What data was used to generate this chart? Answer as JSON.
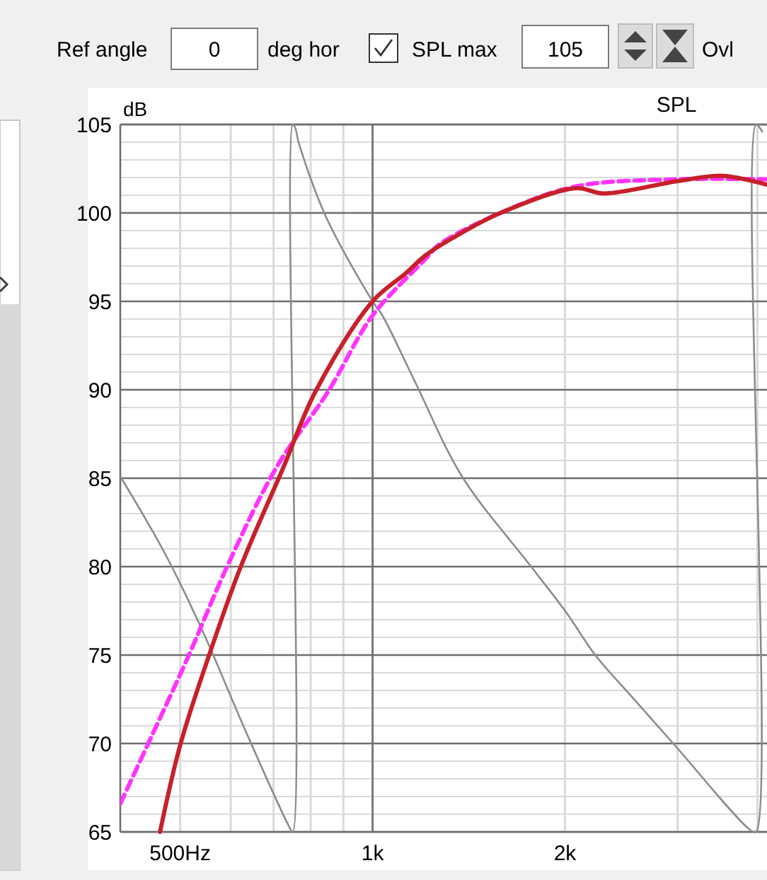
{
  "chart_data": {
    "type": "line",
    "title": "SPL",
    "ylabel": "dB",
    "annotations": [
      "Ref angle",
      "0",
      "deg hor",
      "SPL max",
      "105",
      "Ovl"
    ],
    "log": "x",
    "grid": true,
    "line_style": "solid",
    "xlim": [
      403,
      4140
    ],
    "ylim": [
      65,
      105
    ],
    "xticks": [
      {
        "value": 500,
        "label": "500Hz"
      },
      {
        "value": 1000,
        "label": "1k"
      },
      {
        "value": 2000,
        "label": "2k"
      }
    ],
    "yticks": [
      65,
      70,
      75,
      80,
      85,
      90,
      95,
      100,
      105
    ],
    "series": [
      {
        "color": "#8c8c8c",
        "x": [
          403,
          474,
          543,
          633,
          738,
          750,
          750,
          757,
          766,
          845,
          1000,
          1036,
          1167,
          1380,
          1770,
          2010,
          2230,
          2550,
          2970,
          3900,
          3980,
          3980,
          4070
        ],
        "values": [
          85.1,
          80.7,
          76.3,
          70.7,
          65.4,
          65,
          105,
          104.8,
          104,
          99.8,
          95,
          94.2,
          90.4,
          85.1,
          80,
          77.4,
          75,
          72.6,
          69.9,
          65.1,
          65,
          105,
          104.6
        ]
      },
      {
        "color": "#ff33ff",
        "line_style": "dashed",
        "x": [
          403,
          451,
          516,
          592,
          707,
          852,
          1000,
          1210,
          1270,
          1585,
          2080,
          3000,
          4140
        ],
        "values": [
          66.6,
          70.4,
          75,
          80,
          85.6,
          89.9,
          94.2,
          97.4,
          98.2,
          100,
          101.5,
          101.9,
          101.9
        ]
      },
      {
        "color": "#c8202a",
        "x": [
          465,
          500,
          555,
          622,
          725,
          814,
          1000,
          1128,
          1210,
          1337,
          1585,
          2080,
          2300,
          3000,
          3520,
          4140
        ],
        "values": [
          65,
          69.9,
          75,
          80,
          85.6,
          89.9,
          95,
          96.6,
          97.6,
          98.6,
          100,
          101.4,
          101.1,
          101.8,
          102.1,
          101.6
        ]
      }
    ]
  }
}
